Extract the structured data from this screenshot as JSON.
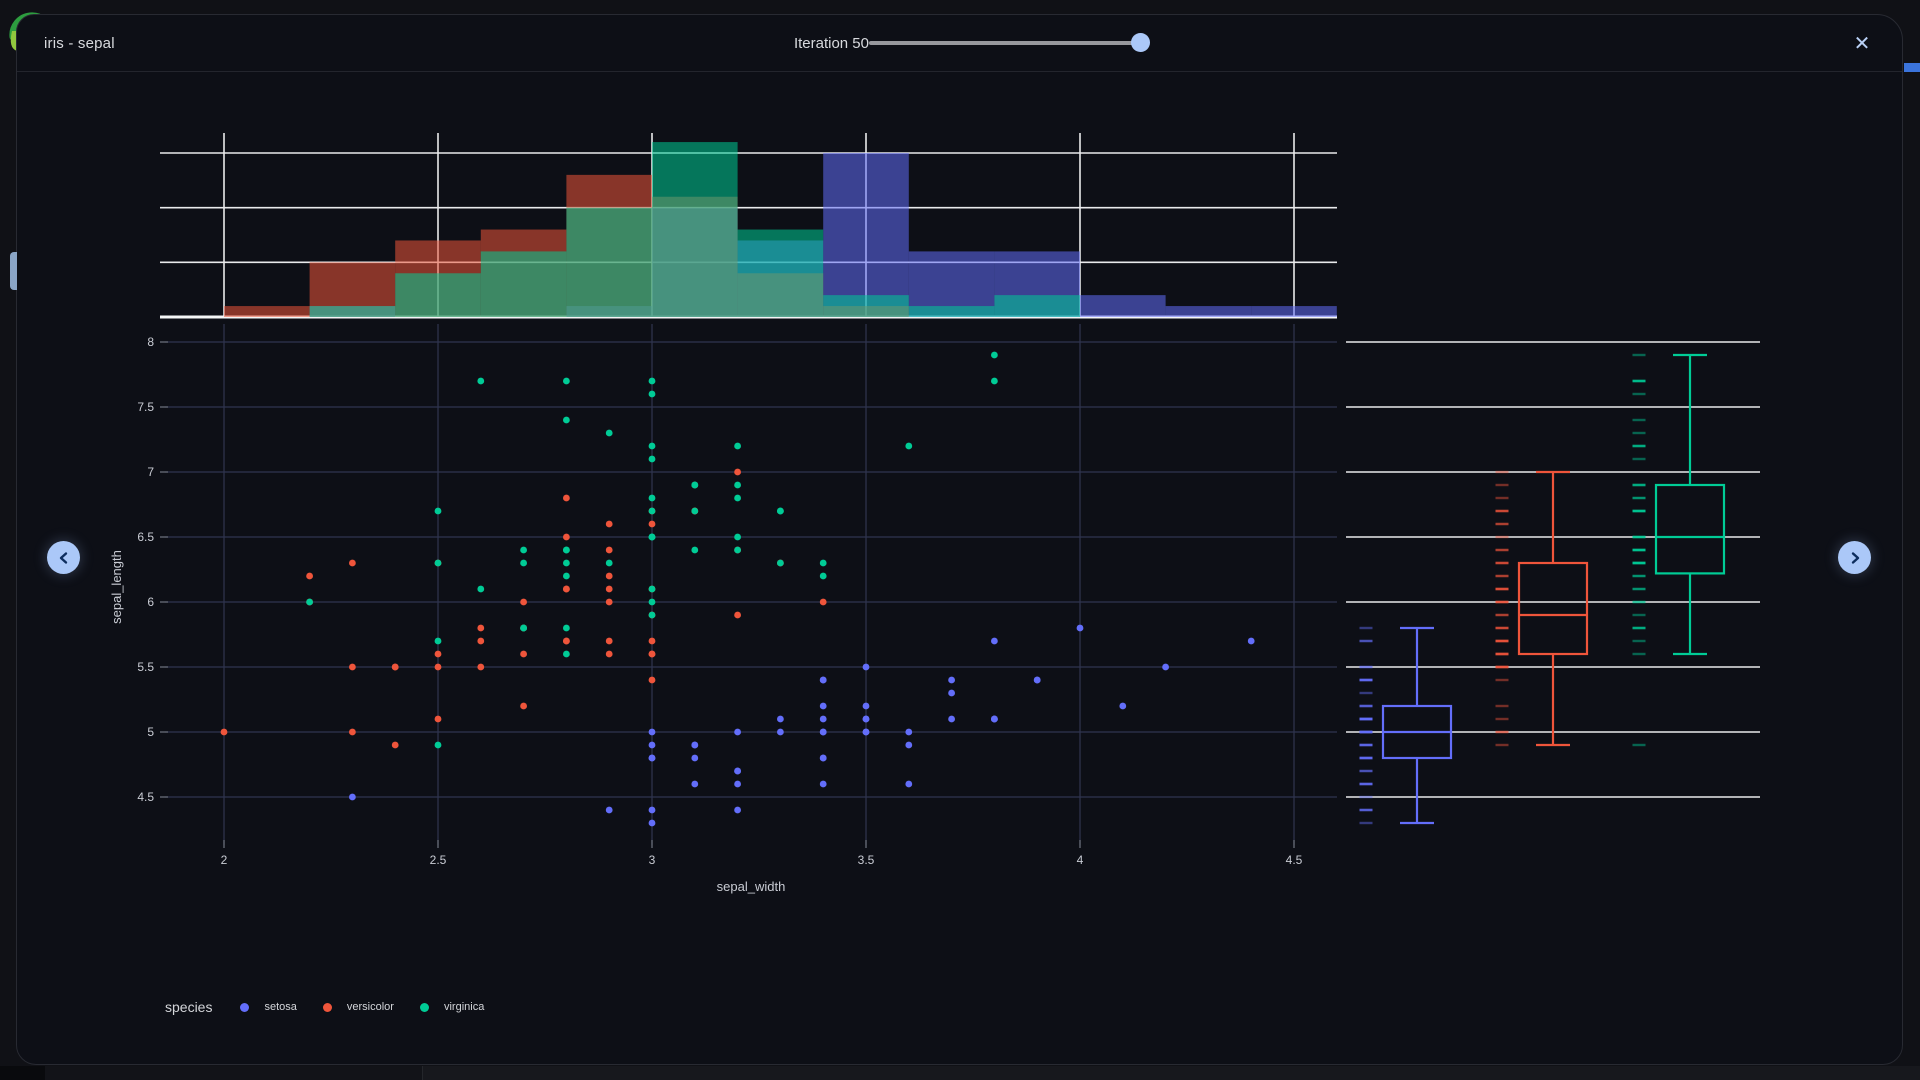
{
  "window": {
    "title": "iris - sepal",
    "slider": {
      "label": "Iteration 50",
      "value": 50
    },
    "close_icon": "✕"
  },
  "nav": {
    "prev_icon": "chevron-left",
    "next_icon": "chevron-right"
  },
  "legend": {
    "title": "species",
    "items": [
      {
        "label": "setosa",
        "color": "#636efa"
      },
      {
        "label": "versicolor",
        "color": "#ef553b"
      },
      {
        "label": "virginica",
        "color": "#00cc96"
      }
    ]
  },
  "colors": {
    "accent_blue": "#abc8f8",
    "grid_dim": "#30354f",
    "grid_white": "#e9eaec",
    "text": "#c9ccd4"
  },
  "chart_data": {
    "type": "scatter",
    "title": "",
    "xlabel": "sepal_width",
    "ylabel": "sepal_length",
    "x_ticks": [
      2,
      2.5,
      3,
      3.5,
      4,
      4.5
    ],
    "y_ticks": [
      4.5,
      5,
      5.5,
      6,
      6.5,
      7,
      7.5,
      8
    ],
    "x_range": [
      1.86,
      4.6
    ],
    "y_range": [
      4.1,
      8.1
    ],
    "series": [
      {
        "name": "setosa",
        "color": "#636efa",
        "x": [
          3.5,
          3.0,
          3.2,
          3.1,
          3.6,
          3.9,
          3.4,
          3.4,
          2.9,
          3.1,
          3.7,
          3.4,
          3.0,
          3.0,
          4.0,
          4.4,
          3.9,
          3.5,
          3.8,
          3.8,
          3.4,
          3.7,
          3.6,
          3.3,
          3.4,
          3.0,
          3.4,
          3.5,
          3.4,
          3.2,
          3.1,
          3.4,
          4.1,
          4.2,
          3.1,
          3.2,
          3.5,
          3.6,
          3.0,
          3.4,
          3.5,
          2.3,
          3.2,
          3.5,
          3.8,
          3.0,
          3.8,
          3.2,
          3.7,
          3.3
        ],
        "y": [
          5.1,
          4.9,
          4.7,
          4.6,
          5.0,
          5.4,
          4.6,
          5.0,
          4.4,
          4.9,
          5.4,
          4.8,
          4.8,
          4.3,
          5.8,
          5.7,
          5.4,
          5.1,
          5.7,
          5.1,
          5.4,
          5.1,
          4.6,
          5.1,
          4.8,
          5.0,
          5.0,
          5.2,
          5.2,
          4.7,
          4.8,
          5.4,
          5.2,
          5.5,
          4.9,
          5.0,
          5.5,
          4.9,
          4.4,
          5.1,
          5.0,
          4.5,
          4.4,
          5.0,
          5.1,
          4.8,
          5.1,
          4.6,
          5.3,
          5.0
        ]
      },
      {
        "name": "versicolor",
        "color": "#ef553b",
        "x": [
          3.2,
          3.2,
          3.1,
          2.3,
          2.8,
          2.8,
          3.3,
          2.4,
          2.9,
          2.7,
          2.0,
          3.0,
          2.2,
          2.9,
          2.9,
          3.1,
          3.0,
          2.7,
          2.2,
          2.5,
          3.2,
          2.8,
          2.5,
          2.8,
          2.9,
          3.0,
          2.8,
          3.0,
          2.9,
          2.6,
          2.4,
          2.4,
          2.7,
          2.7,
          3.0,
          3.4,
          3.1,
          2.3,
          3.0,
          2.5,
          2.6,
          3.0,
          2.6,
          2.3,
          2.7,
          3.0,
          2.9,
          2.9,
          2.5,
          2.8
        ],
        "y": [
          7.0,
          6.4,
          6.9,
          5.5,
          6.5,
          5.7,
          6.3,
          4.9,
          6.6,
          5.2,
          5.0,
          5.9,
          6.0,
          6.1,
          5.6,
          6.7,
          5.6,
          5.8,
          6.2,
          5.6,
          5.9,
          6.1,
          6.3,
          6.1,
          6.4,
          6.6,
          6.8,
          6.7,
          6.0,
          5.7,
          5.5,
          5.5,
          5.8,
          6.0,
          5.4,
          6.0,
          6.7,
          6.3,
          5.6,
          5.5,
          5.5,
          6.1,
          5.8,
          5.0,
          5.6,
          5.7,
          5.7,
          6.2,
          5.1,
          5.7
        ]
      },
      {
        "name": "virginica",
        "color": "#00cc96",
        "x": [
          3.3,
          2.7,
          3.0,
          2.9,
          3.0,
          3.0,
          2.5,
          2.9,
          2.5,
          3.6,
          3.2,
          2.7,
          3.0,
          2.5,
          2.8,
          3.2,
          3.0,
          3.8,
          2.6,
          2.2,
          3.2,
          2.8,
          2.8,
          2.7,
          3.3,
          3.2,
          2.8,
          3.0,
          2.8,
          3.0,
          2.8,
          3.8,
          2.8,
          2.8,
          2.6,
          3.0,
          3.4,
          3.1,
          3.0,
          3.1,
          3.1,
          3.1,
          2.7,
          3.2,
          3.3,
          3.0,
          2.5,
          3.0,
          3.4,
          3.0
        ],
        "y": [
          6.3,
          5.8,
          7.1,
          6.3,
          6.5,
          7.6,
          4.9,
          7.3,
          6.7,
          7.2,
          6.5,
          6.4,
          6.8,
          5.7,
          5.8,
          6.4,
          6.5,
          7.7,
          7.7,
          6.0,
          6.9,
          5.6,
          7.7,
          6.3,
          6.7,
          7.2,
          6.2,
          6.1,
          6.4,
          7.2,
          7.4,
          7.9,
          6.4,
          6.3,
          6.1,
          7.7,
          6.3,
          6.4,
          6.0,
          6.9,
          6.7,
          6.9,
          5.8,
          6.8,
          6.7,
          6.7,
          6.3,
          6.5,
          6.2,
          5.9
        ]
      }
    ],
    "marginal_top_histogram": {
      "bin_width": 0.2,
      "count_gridlines": [
        5,
        10,
        15
      ],
      "bins": [
        {
          "species": "setosa",
          "data": [
            [
              2.2,
              1
            ],
            [
              2.8,
              1
            ],
            [
              3.0,
              10
            ],
            [
              3.2,
              7
            ],
            [
              3.4,
              15
            ],
            [
              3.6,
              6
            ],
            [
              3.8,
              6
            ],
            [
              4.0,
              2
            ],
            [
              4.2,
              1
            ],
            [
              4.4,
              1
            ]
          ]
        },
        {
          "species": "versicolor",
          "data": [
            [
              2.0,
              1
            ],
            [
              2.2,
              5
            ],
            [
              2.4,
              7
            ],
            [
              2.6,
              8
            ],
            [
              2.8,
              13
            ],
            [
              3.0,
              11
            ],
            [
              3.2,
              4
            ],
            [
              3.4,
              1
            ]
          ]
        },
        {
          "species": "virginica",
          "data": [
            [
              2.2,
              1
            ],
            [
              2.4,
              4
            ],
            [
              2.6,
              6
            ],
            [
              2.8,
              10
            ],
            [
              3.0,
              16
            ],
            [
              3.2,
              8
            ],
            [
              3.4,
              2
            ],
            [
              3.6,
              1
            ],
            [
              3.8,
              2
            ]
          ]
        }
      ]
    },
    "marginal_right_box": {
      "stats": [
        {
          "species": "setosa",
          "low": 4.3,
          "q1": 4.8,
          "median": 5.0,
          "q3": 5.2,
          "high": 5.8,
          "outliers": []
        },
        {
          "species": "versicolor",
          "low": 4.9,
          "q1": 5.6,
          "median": 5.9,
          "q3": 6.3,
          "high": 7.0,
          "outliers": []
        },
        {
          "species": "virginica",
          "low": 5.6,
          "q1": 6.22,
          "median": 6.5,
          "q3": 6.9,
          "high": 7.9,
          "outliers": [
            4.9
          ]
        }
      ]
    }
  }
}
